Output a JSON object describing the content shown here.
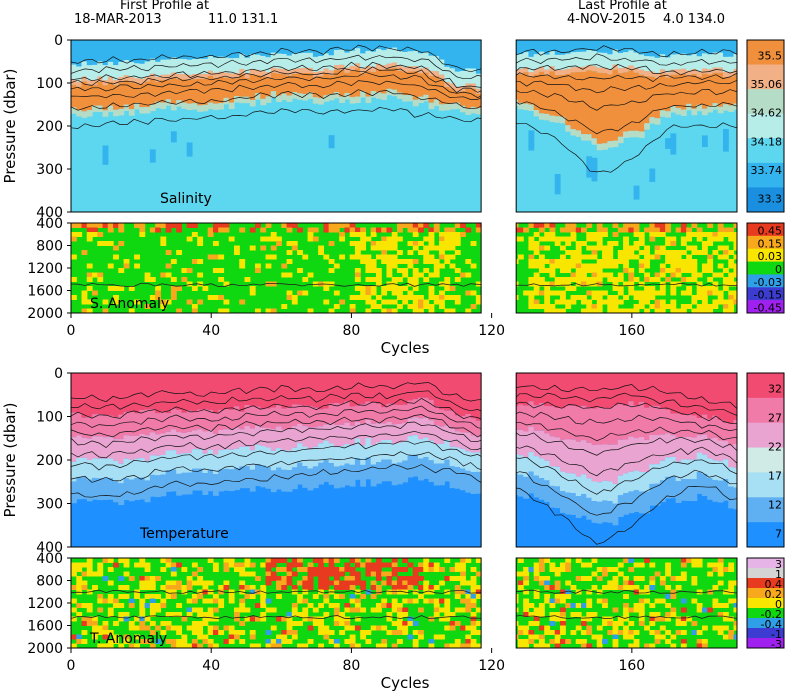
{
  "header": {
    "first_label": "First Profile at",
    "first_date": "18-MAR-2013",
    "first_coords": "11.0 131.1",
    "last_label": "Last Profile at",
    "last_date": "4-NOV-2015",
    "last_coords": "4.0 134.0"
  },
  "colors": {
    "salinity_scale": [
      "#1a8fe0",
      "#33b4ee",
      "#5dd6ef",
      "#b6ede9",
      "#b5dcc6",
      "#f2b087",
      "#f08f3c"
    ],
    "anomaly_scale": [
      "#a020f0",
      "#3c3cd0",
      "#2f9fe8",
      "#10d810",
      "#f8e600",
      "#f8a81c",
      "#e83a1e",
      "#d4d4d4",
      "#e6b4e6"
    ],
    "temperature_scale": [
      "#1e90ff",
      "#5fb0f2",
      "#a7dff5",
      "#d0ebe6",
      "#e9a4d2",
      "#f07aa8",
      "#f24b72"
    ]
  },
  "chart_data": [
    {
      "type": "heatmap",
      "panel": "salinity",
      "label": "Salinity",
      "ylabel": "Pressure (dbar)",
      "xlim": [
        0,
        190
      ],
      "ylim": [
        400,
        0
      ],
      "yticks": [
        "0",
        "100",
        "200",
        "300",
        "400"
      ],
      "gap_cycles": [
        117,
        127
      ],
      "colorbar": [
        "35.5",
        "35.06",
        "34.62",
        "34.18",
        "33.74",
        "33.3"
      ],
      "halocline_depth_profile": {
        "cycles": [
          0,
          10,
          20,
          30,
          40,
          50,
          60,
          70,
          80,
          90,
          100,
          110,
          117,
          127,
          140,
          150,
          160,
          170,
          180,
          190
        ],
        "top_dbar": [
          90,
          88,
          85,
          80,
          78,
          72,
          65,
          68,
          60,
          58,
          65,
          105,
          110,
          70,
          65,
          60,
          65,
          75,
          70,
          70
        ],
        "bottom_dbar": [
          175,
          172,
          165,
          160,
          158,
          150,
          140,
          145,
          140,
          135,
          150,
          165,
          170,
          160,
          200,
          255,
          230,
          175,
          170,
          170
        ]
      }
    },
    {
      "type": "heatmap",
      "panel": "salinity_anomaly",
      "label": "S. Anomaly",
      "ylim": [
        2000,
        400
      ],
      "yticks": [
        "400",
        "800",
        "1200",
        "1600",
        "2000"
      ],
      "gap_cycles": [
        117,
        127
      ],
      "colorbar": [
        "0.45",
        "0.15",
        "0.03",
        "0",
        "-0.03",
        "-0.15",
        "-0.45"
      ]
    },
    {
      "type": "heatmap",
      "panel": "temperature",
      "label": "Temperature",
      "ylabel": "Pressure (dbar)",
      "xlim": [
        0,
        190
      ],
      "ylim": [
        400,
        0
      ],
      "yticks": [
        "0",
        "100",
        "200",
        "300",
        "400"
      ],
      "gap_cycles": [
        117,
        127
      ],
      "colorbar": [
        "32",
        "27",
        "22",
        "17",
        "12",
        "7"
      ],
      "thermocline_depth_profile": {
        "cycles": [
          0,
          10,
          20,
          30,
          40,
          50,
          60,
          70,
          80,
          90,
          100,
          110,
          117,
          127,
          140,
          150,
          160,
          170,
          180,
          190
        ],
        "d27_dbar": [
          95,
          100,
          90,
          85,
          90,
          80,
          75,
          80,
          70,
          75,
          60,
          95,
          110,
          70,
          75,
          80,
          70,
          85,
          100,
          115
        ],
        "d17_dbar": [
          200,
          205,
          195,
          180,
          185,
          175,
          170,
          165,
          160,
          155,
          150,
          170,
          190,
          180,
          220,
          260,
          230,
          200,
          190,
          215
        ]
      }
    },
    {
      "type": "heatmap",
      "panel": "temperature_anomaly",
      "label": "T. Anomaly",
      "ylim": [
        2000,
        400
      ],
      "yticks": [
        "400",
        "800",
        "1200",
        "1600",
        "2000"
      ],
      "gap_cycles": [
        117,
        127
      ],
      "colorbar": [
        "3",
        "1",
        "0.4",
        "0.2",
        "0",
        "-0.2",
        "-0.4",
        "-1",
        "-3"
      ]
    }
  ],
  "xaxis": {
    "xlabel": "Cycles",
    "ticks": [
      "0",
      "40",
      "80",
      "120",
      "160"
    ]
  }
}
